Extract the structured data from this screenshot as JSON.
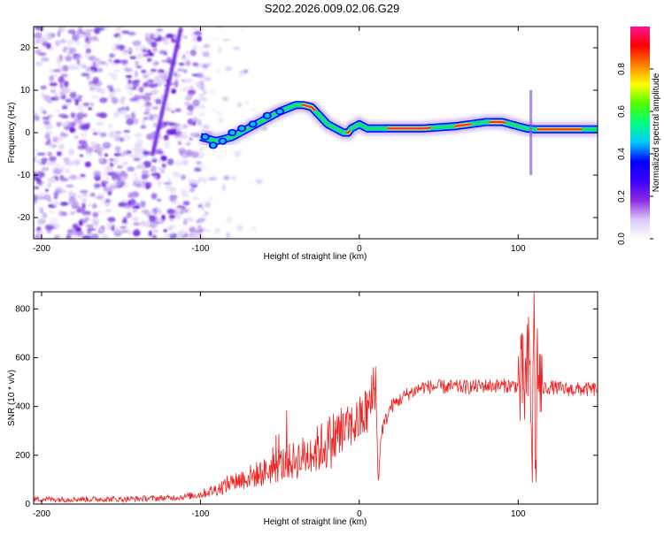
{
  "title": "S202.2026.009.02.06.G29",
  "chart_data": [
    {
      "type": "heatmap",
      "name": "spectrogram",
      "xlabel": "Height of straight line (km)",
      "ylabel": "Frequency (Hz)",
      "xlim": [
        -205,
        150
      ],
      "ylim": [
        -25,
        25
      ],
      "xticks": [
        -200,
        -100,
        0,
        100
      ],
      "yticks": [
        -20,
        -10,
        0,
        10,
        20
      ],
      "ridge_line": {
        "x": [
          -100,
          -90,
          -80,
          -70,
          -60,
          -50,
          -40,
          -35,
          -30,
          -25,
          -20,
          -15,
          -10,
          -7,
          -5,
          0,
          5,
          10,
          20,
          40,
          60,
          80,
          90,
          100,
          105,
          110,
          120,
          150
        ],
        "y": [
          -1,
          -2,
          -1,
          1,
          3,
          5,
          6.5,
          6.5,
          6,
          4,
          2,
          1,
          0,
          0,
          1,
          2,
          1,
          1,
          1,
          1,
          1.5,
          2.5,
          2.5,
          1.5,
          1,
          0.8,
          0.8,
          0.8
        ]
      },
      "colorbar": {
        "label": "Normalized spectral amplitude",
        "ticks": [
          0.0,
          0.2,
          0.4,
          0.6,
          0.8
        ],
        "tick_labels": [
          "0.0",
          "0.2",
          "0.4",
          "0.6",
          "0.8"
        ],
        "colors": [
          "#ffffff",
          "#dac8f8",
          "#8a2be2",
          "#3b00ff",
          "#0000ff",
          "#00c8ff",
          "#00ff80",
          "#50ff00",
          "#ffff00",
          "#ff8000",
          "#ff0000",
          "#ff1493"
        ]
      }
    },
    {
      "type": "line",
      "name": "snr",
      "xlabel": "Height of straight line (km)",
      "ylabel": "SNR (10 * v/v)",
      "xlim": [
        -205,
        150
      ],
      "ylim": [
        0,
        870
      ],
      "xticks": [
        -200,
        -100,
        0,
        100
      ],
      "yticks": [
        0,
        200,
        400,
        600,
        800
      ],
      "color": "#ee2222",
      "series": [
        {
          "name": "SNR",
          "x": [
            -205,
            -180,
            -150,
            -120,
            -110,
            -100,
            -90,
            -80,
            -70,
            -60,
            -50,
            -40,
            -30,
            -20,
            -10,
            -5,
            0,
            5,
            8,
            10,
            11,
            12,
            14,
            20,
            30,
            40,
            50,
            60,
            70,
            80,
            90,
            100,
            105,
            107,
            109,
            110,
            111,
            112,
            114,
            120,
            130,
            140,
            150
          ],
          "y": [
            20,
            20,
            20,
            25,
            30,
            40,
            60,
            90,
            110,
            130,
            160,
            180,
            210,
            250,
            300,
            320,
            340,
            380,
            420,
            550,
            300,
            100,
            300,
            400,
            450,
            480,
            480,
            480,
            480,
            485,
            485,
            485,
            490,
            600,
            200,
            870,
            40,
            600,
            470,
            480,
            470,
            470,
            470
          ]
        }
      ]
    }
  ]
}
